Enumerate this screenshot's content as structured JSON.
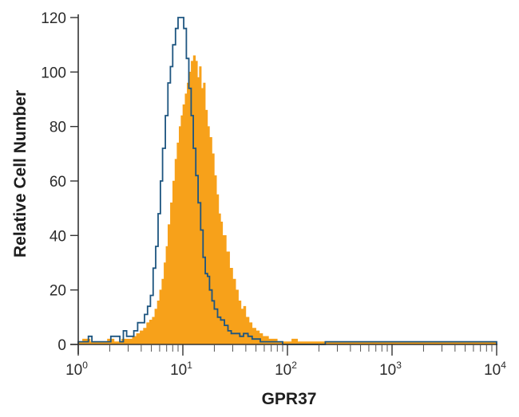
{
  "chart_data": {
    "type": "histogram-overlay",
    "title": "",
    "xlabel": "GPR37",
    "ylabel": "Relative Cell Number",
    "xscale": "log",
    "xlim": [
      1,
      10000
    ],
    "ylim": [
      0,
      120
    ],
    "x_ticks": [
      {
        "base": "10",
        "exp": "0"
      },
      {
        "base": "10",
        "exp": "1"
      },
      {
        "base": "10",
        "exp": "2"
      },
      {
        "base": "10",
        "exp": "3"
      },
      {
        "base": "10",
        "exp": "4"
      }
    ],
    "y_ticks": [
      "0",
      "20",
      "40",
      "60",
      "80",
      "100",
      "120"
    ],
    "grid": false,
    "legend": null,
    "colors": {
      "stained": "#f7a11a",
      "control": "#1d5580",
      "axis": "#333333"
    },
    "series": [
      {
        "name": "isotype control (open, blue outline)",
        "style": "outline",
        "color": "#1d5580",
        "points": [
          [
            1.0,
            1
          ],
          [
            1.15,
            1
          ],
          [
            1.25,
            3
          ],
          [
            1.35,
            1
          ],
          [
            1.6,
            1
          ],
          [
            1.9,
            1
          ],
          [
            2.05,
            3
          ],
          [
            2.3,
            3
          ],
          [
            2.5,
            1
          ],
          [
            2.7,
            5
          ],
          [
            2.9,
            3
          ],
          [
            3.1,
            3
          ],
          [
            3.4,
            5
          ],
          [
            3.7,
            8
          ],
          [
            4.0,
            8
          ],
          [
            4.3,
            11
          ],
          [
            4.6,
            14
          ],
          [
            4.9,
            18
          ],
          [
            5.2,
            28
          ],
          [
            5.5,
            36
          ],
          [
            5.8,
            48
          ],
          [
            6.1,
            60
          ],
          [
            6.4,
            72
          ],
          [
            6.8,
            84
          ],
          [
            7.2,
            96
          ],
          [
            7.6,
            102
          ],
          [
            8.0,
            110
          ],
          [
            8.5,
            116
          ],
          [
            9.0,
            120
          ],
          [
            9.6,
            120
          ],
          [
            10.2,
            116
          ],
          [
            10.8,
            105
          ],
          [
            11.4,
            94
          ],
          [
            12.0,
            84
          ],
          [
            12.6,
            72
          ],
          [
            13.3,
            62
          ],
          [
            14.0,
            52
          ],
          [
            14.8,
            42
          ],
          [
            15.6,
            32
          ],
          [
            16.4,
            26
          ],
          [
            17.2,
            25
          ],
          [
            18.0,
            20
          ],
          [
            19.0,
            16
          ],
          [
            20.0,
            13
          ],
          [
            21.5,
            10
          ],
          [
            23,
            9
          ],
          [
            25,
            7
          ],
          [
            27,
            5
          ],
          [
            29,
            4
          ],
          [
            32,
            4
          ],
          [
            35,
            3
          ],
          [
            38,
            4
          ],
          [
            42,
            3
          ],
          [
            46,
            2
          ],
          [
            50,
            2
          ],
          [
            55,
            1
          ],
          [
            62,
            1
          ],
          [
            70,
            1
          ],
          [
            80,
            1
          ],
          [
            90,
            0
          ],
          [
            100,
            0
          ],
          [
            230,
            1
          ],
          [
            330,
            1
          ],
          [
            430,
            1
          ],
          [
            1200,
            1
          ],
          [
            1600,
            1
          ],
          [
            10000,
            0
          ]
        ]
      },
      {
        "name": "GPR37 stained (filled, orange)",
        "style": "filled",
        "color": "#f7a11a",
        "points": [
          [
            1.0,
            1
          ],
          [
            1.1,
            2
          ],
          [
            1.3,
            1
          ],
          [
            1.6,
            1
          ],
          [
            1.9,
            2
          ],
          [
            2.2,
            1
          ],
          [
            2.6,
            2
          ],
          [
            3.0,
            2
          ],
          [
            3.3,
            3
          ],
          [
            3.6,
            4
          ],
          [
            3.9,
            5
          ],
          [
            4.2,
            6
          ],
          [
            4.5,
            8
          ],
          [
            4.8,
            9
          ],
          [
            5.1,
            10
          ],
          [
            5.4,
            13
          ],
          [
            5.7,
            16
          ],
          [
            6.0,
            20
          ],
          [
            6.3,
            24
          ],
          [
            6.6,
            30
          ],
          [
            6.9,
            36
          ],
          [
            7.2,
            44
          ],
          [
            7.6,
            52
          ],
          [
            8.0,
            60
          ],
          [
            8.4,
            68
          ],
          [
            8.8,
            74
          ],
          [
            9.2,
            80
          ],
          [
            9.6,
            84
          ],
          [
            10.0,
            88
          ],
          [
            10.5,
            92
          ],
          [
            11.0,
            96
          ],
          [
            11.5,
            100
          ],
          [
            12.0,
            104
          ],
          [
            12.6,
            106
          ],
          [
            13.2,
            104
          ],
          [
            13.8,
            98
          ],
          [
            14.4,
            102
          ],
          [
            15.0,
            94
          ],
          [
            15.7,
            96
          ],
          [
            16.4,
            86
          ],
          [
            17.2,
            80
          ],
          [
            18.0,
            76
          ],
          [
            19.0,
            70
          ],
          [
            20,
            62
          ],
          [
            21,
            55
          ],
          [
            22,
            48
          ],
          [
            23,
            45
          ],
          [
            24,
            40
          ],
          [
            25,
            40
          ],
          [
            26,
            34
          ],
          [
            28,
            28
          ],
          [
            30,
            24
          ],
          [
            32,
            20
          ],
          [
            34,
            16
          ],
          [
            36,
            13
          ],
          [
            38,
            14
          ],
          [
            40,
            10
          ],
          [
            43,
            8
          ],
          [
            46,
            6
          ],
          [
            50,
            5
          ],
          [
            54,
            4
          ],
          [
            58,
            3
          ],
          [
            62,
            3
          ],
          [
            66,
            2
          ],
          [
            72,
            2
          ],
          [
            80,
            1
          ],
          [
            90,
            1
          ],
          [
            100,
            1
          ],
          [
            110,
            2
          ],
          [
            125,
            1
          ],
          [
            140,
            1
          ],
          [
            10000,
            0
          ]
        ]
      }
    ]
  }
}
